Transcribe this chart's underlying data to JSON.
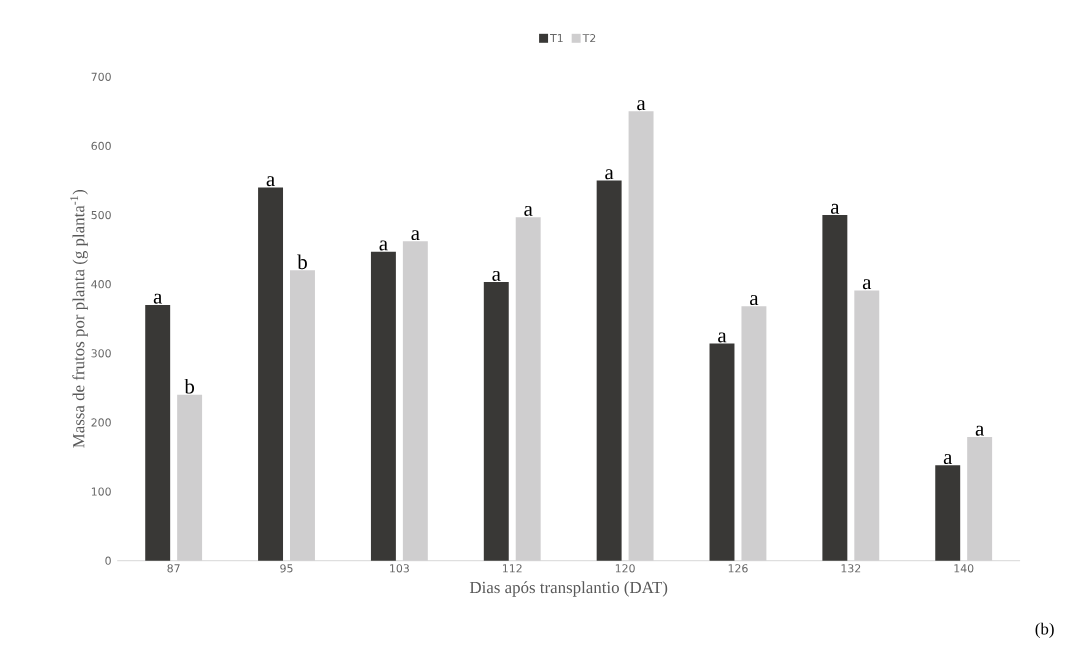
{
  "chart_data": {
    "type": "bar",
    "xlabel": "Dias após transplantio (DAT)",
    "ylabel": "Massa de frutos por planta (g planta$^{-1}$)",
    "categories": [
      "87",
      "95",
      "103",
      "112",
      "120",
      "126",
      "132",
      "140"
    ],
    "series": [
      {
        "name": "T1",
        "color": "#393836",
        "values": [
          370,
          540,
          447,
          403,
          550,
          314,
          500,
          138
        ]
      },
      {
        "name": "T2",
        "color": "#cfcecf",
        "values": [
          240,
          420,
          462,
          497,
          650,
          368,
          391,
          179
        ]
      }
    ],
    "ylim": [
      0,
      700
    ],
    "yticks": [
      0,
      100,
      200,
      300,
      400,
      500,
      600,
      700
    ],
    "legend": "top",
    "annotations": [
      {
        "text": "a",
        "x": "87",
        "y": 370
      },
      {
        "text": "b",
        "x": "87",
        "y": 240
      },
      {
        "text": "a",
        "x": "95",
        "y": 540
      },
      {
        "text": "b",
        "x": "95",
        "y": 420
      },
      {
        "text": "a",
        "x": "103",
        "y": 447
      },
      {
        "text": "a",
        "x": "103",
        "y": 462
      },
      {
        "text": "a",
        "x": "112",
        "y": 403
      },
      {
        "text": "a",
        "x": "112",
        "y": 497
      },
      {
        "text": "a",
        "x": "120",
        "y": 550
      },
      {
        "text": "a",
        "x": "120",
        "y": 650
      },
      {
        "text": "a",
        "x": "126",
        "y": 314
      },
      {
        "text": "a",
        "x": "126",
        "y": 368
      },
      {
        "text": "a",
        "x": "132",
        "y": 500
      },
      {
        "text": "a",
        "x": "132",
        "y": 391
      },
      {
        "text": "a",
        "x": "140",
        "y": 138
      },
      {
        "text": "a",
        "x": "140",
        "y": 179
      },
      "(b)"
    ]
  }
}
